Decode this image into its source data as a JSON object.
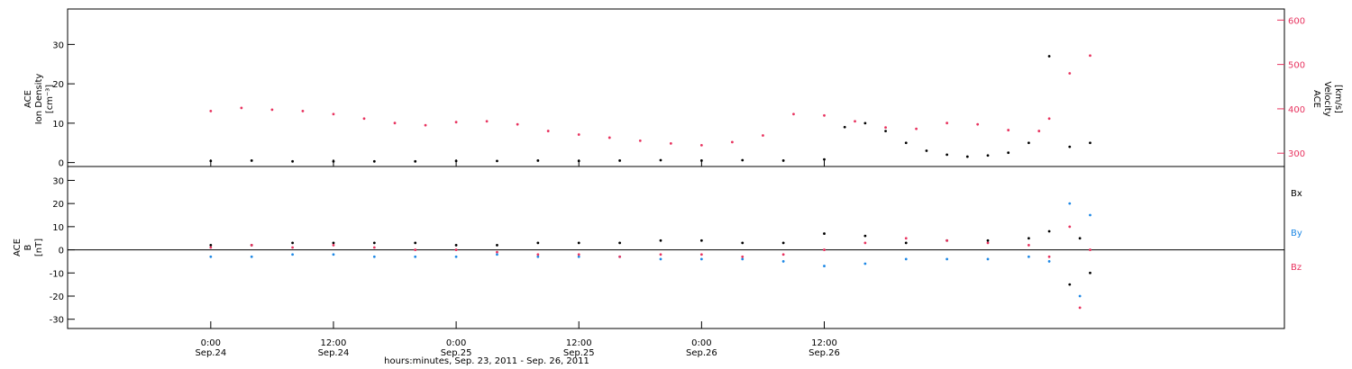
{
  "colors": {
    "black": "#000000",
    "pink": "#e8335f",
    "blue": "#1e88e5",
    "bg": "#ffffff"
  },
  "chart_data": [
    {
      "panel": "top",
      "type": "scatter",
      "ylabel_left": [
        "ACE",
        "Ion Density",
        "[cm⁻³]"
      ],
      "ylabel_right": [
        "ACE",
        "Velocity",
        "[km/s]"
      ],
      "ylim_left": [
        -1,
        39
      ],
      "ylim_right": [
        270,
        625
      ],
      "yticks_left": [
        0,
        10,
        20,
        30
      ],
      "yticks_right": [
        300,
        400,
        500,
        600
      ],
      "series": [
        {
          "name": "density",
          "axis": "left",
          "x": [
            0,
            4,
            8,
            12,
            16,
            20,
            24,
            28,
            32,
            36,
            40,
            44,
            48,
            52,
            56,
            60,
            62,
            64,
            66,
            68,
            70,
            72,
            74,
            76,
            78,
            80,
            82,
            84,
            86
          ],
          "y": [
            0.4,
            0.5,
            0.3,
            0.3,
            0.3,
            0.3,
            0.4,
            0.4,
            0.5,
            0.4,
            0.5,
            0.6,
            0.5,
            0.6,
            0.5,
            0.8,
            9,
            10,
            8,
            5,
            3,
            2,
            1.5,
            1.8,
            2.5,
            5,
            27,
            4,
            5
          ]
        },
        {
          "name": "velocity",
          "axis": "right",
          "x": [
            0,
            3,
            6,
            9,
            12,
            15,
            18,
            21,
            24,
            27,
            30,
            33,
            36,
            39,
            42,
            45,
            48,
            51,
            54,
            57,
            60,
            63,
            66,
            69,
            72,
            75,
            78,
            81,
            82,
            84,
            86
          ],
          "y": [
            395,
            402,
            398,
            395,
            388,
            378,
            368,
            363,
            370,
            372,
            365,
            350,
            342,
            335,
            328,
            322,
            318,
            325,
            340,
            388,
            385,
            372,
            358,
            355,
            368,
            365,
            352,
            350,
            378,
            480,
            520
          ]
        }
      ]
    },
    {
      "panel": "bottom",
      "type": "scatter",
      "ylabel_left": [
        "ACE",
        "B",
        "[nT]"
      ],
      "ylim": [
        -34,
        36
      ],
      "yticks": [
        -30,
        -20,
        -10,
        0,
        10,
        20,
        30
      ],
      "legend": [
        "Bx",
        "By",
        "Bz"
      ],
      "series": [
        {
          "name": "Bx",
          "x": [
            0,
            4,
            8,
            12,
            16,
            20,
            24,
            28,
            32,
            36,
            40,
            44,
            48,
            52,
            56,
            60,
            64,
            68,
            72,
            76,
            80,
            82,
            84,
            85,
            86
          ],
          "y": [
            2,
            2,
            3,
            3,
            3,
            3,
            2,
            2,
            3,
            3,
            3,
            4,
            4,
            3,
            3,
            7,
            6,
            3,
            4,
            4,
            5,
            8,
            -15,
            5,
            -10
          ]
        },
        {
          "name": "By",
          "x": [
            0,
            4,
            8,
            12,
            16,
            20,
            24,
            28,
            32,
            36,
            40,
            44,
            48,
            52,
            56,
            60,
            64,
            68,
            72,
            76,
            80,
            82,
            84,
            85,
            86
          ],
          "y": [
            -3,
            -3,
            -2,
            -2,
            -3,
            -3,
            -3,
            -2,
            -3,
            -3,
            -3,
            -4,
            -4,
            -4,
            -5,
            -7,
            -6,
            -4,
            -4,
            -4,
            -3,
            -5,
            20,
            -20,
            15
          ]
        },
        {
          "name": "Bz",
          "x": [
            0,
            4,
            8,
            12,
            16,
            20,
            24,
            28,
            32,
            36,
            40,
            44,
            48,
            52,
            56,
            60,
            64,
            68,
            72,
            76,
            80,
            82,
            84,
            85,
            86
          ],
          "y": [
            1,
            2,
            1,
            2,
            1,
            0,
            0,
            -1,
            -2,
            -2,
            -3,
            -2,
            -2,
            -3,
            -2,
            0,
            3,
            5,
            4,
            3,
            2,
            -3,
            10,
            -25,
            0
          ]
        }
      ]
    }
  ],
  "x_axis": {
    "range_hours": [
      -14,
      105
    ],
    "ticks": [
      {
        "h": 0,
        "time": "0:00",
        "date": "Sep.24"
      },
      {
        "h": 12,
        "time": "12:00",
        "date": "Sep.24"
      },
      {
        "h": 24,
        "time": "0:00",
        "date": "Sep.25"
      },
      {
        "h": 36,
        "time": "12:00",
        "date": "Sep.25"
      },
      {
        "h": 48,
        "time": "0:00",
        "date": "Sep.26"
      },
      {
        "h": 60,
        "time": "12:00",
        "date": "Sep.26"
      }
    ],
    "title": "hours:minutes, Sep. 23, 2011 - Sep. 26, 2011"
  }
}
